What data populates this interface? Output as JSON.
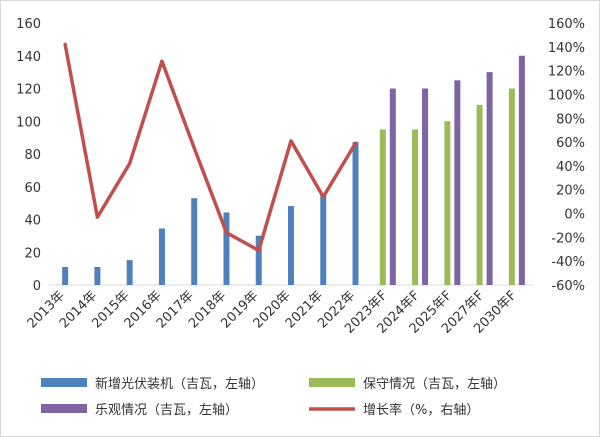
{
  "chart_data": {
    "type": "bar",
    "categories": [
      "2013年",
      "2014年",
      "2015年",
      "2016年",
      "2017年",
      "2018年",
      "2019年",
      "2020年",
      "2021年",
      "2022年",
      "2023年F",
      "2024年F",
      "2025年F",
      "2027年F",
      "2030年F"
    ],
    "series": [
      {
        "name": "新增光伏装机（吉瓦，左轴）",
        "kind": "bar",
        "axis": "left",
        "color": "#4f81bd",
        "values": [
          11,
          11,
          15.2,
          34.5,
          53,
          44.3,
          30.1,
          48.2,
          54.9,
          87.4,
          null,
          null,
          null,
          null,
          null
        ]
      },
      {
        "name": "保守情况（吉瓦，左轴）",
        "kind": "bar",
        "axis": "left",
        "color": "#9bbb59",
        "values": [
          null,
          null,
          null,
          null,
          null,
          null,
          null,
          null,
          null,
          null,
          95,
          95,
          100,
          110,
          120
        ]
      },
      {
        "name": "乐观情况（吉瓦，左轴）",
        "kind": "bar",
        "axis": "left",
        "color": "#8064a2",
        "values": [
          null,
          null,
          null,
          null,
          null,
          null,
          null,
          null,
          null,
          null,
          120,
          120,
          125,
          130,
          140
        ]
      },
      {
        "name": "增长率（%，右轴）",
        "kind": "line",
        "axis": "right",
        "color": "#c0504d",
        "values": [
          142,
          -3,
          42,
          128,
          55,
          -16,
          -31,
          61,
          14,
          59,
          null,
          null,
          null,
          null,
          null
        ]
      }
    ],
    "ylim_left": [
      0,
      160
    ],
    "yticks_left": [
      "0",
      "20",
      "40",
      "60",
      "80",
      "100",
      "120",
      "140",
      "160"
    ],
    "ylim_right": [
      -60,
      160
    ],
    "yticks_right": [
      "-60%",
      "-40%",
      "-20%",
      "0%",
      "20%",
      "40%",
      "60%",
      "80%",
      "100%",
      "120%",
      "140%",
      "160%"
    ],
    "grid": false,
    "legend_position": "bottom"
  }
}
